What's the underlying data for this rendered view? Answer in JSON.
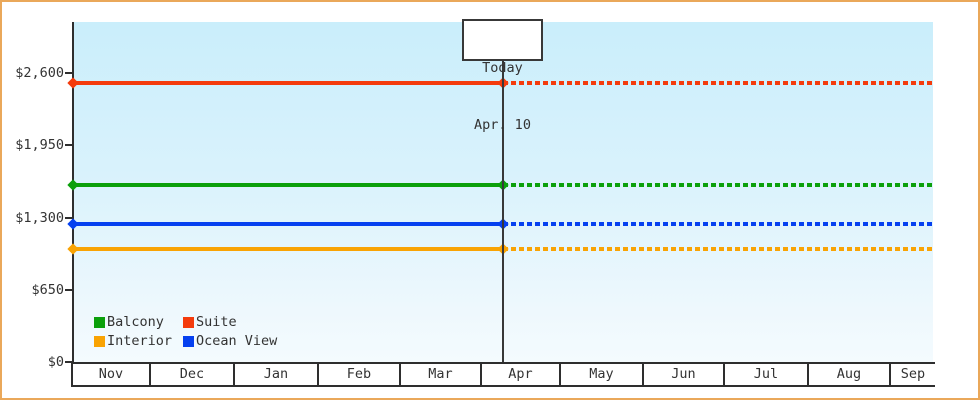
{
  "frame": {
    "border_color": "#eaa85a",
    "background": "#ffffff"
  },
  "chart_data": {
    "type": "line",
    "title": "",
    "description": "Cruise cabin price history by category. Each series is a flat (constant) price line across the visible range; lines are solid before the Today marker (Apr. 10) and dashed after it.",
    "x_axis": {
      "months": [
        "Nov",
        "Dec",
        "Jan",
        "Feb",
        "Mar",
        "Apr",
        "May",
        "Jun",
        "Jul",
        "Aug",
        "Sep"
      ]
    },
    "y_axis": {
      "tick_labels_bottom_to_top": [
        "$0",
        "$650",
        "$1,300",
        "$1,950",
        "$2,600"
      ],
      "min": 0,
      "max": 2600
    },
    "today_annotation": {
      "line1": "Today",
      "line2": "Apr. 10"
    },
    "series": [
      {
        "name": "Suite",
        "color": "#f43b0c",
        "value": 2510
      },
      {
        "name": "Balcony",
        "color": "#0ba00b",
        "value": 1595
      },
      {
        "name": "Ocean View",
        "color": "#0540f0",
        "value": 1240
      },
      {
        "name": "Interior",
        "color": "#f9a303",
        "value": 1020
      }
    ],
    "legend": {
      "position": "bottom-left",
      "rows": [
        [
          {
            "label": "Balcony",
            "color": "#0ba00b"
          },
          {
            "label": "Suite",
            "color": "#f43b0c"
          }
        ],
        [
          {
            "label": "Interior",
            "color": "#f9a303"
          },
          {
            "label": "Ocean View",
            "color": "#0540f0"
          }
        ]
      ]
    },
    "grid": false,
    "plot_background": {
      "top": "#caeefb",
      "bottom": "#f4fbfe"
    },
    "axis_color": "#2e2e2e",
    "text_color": "#333333"
  }
}
